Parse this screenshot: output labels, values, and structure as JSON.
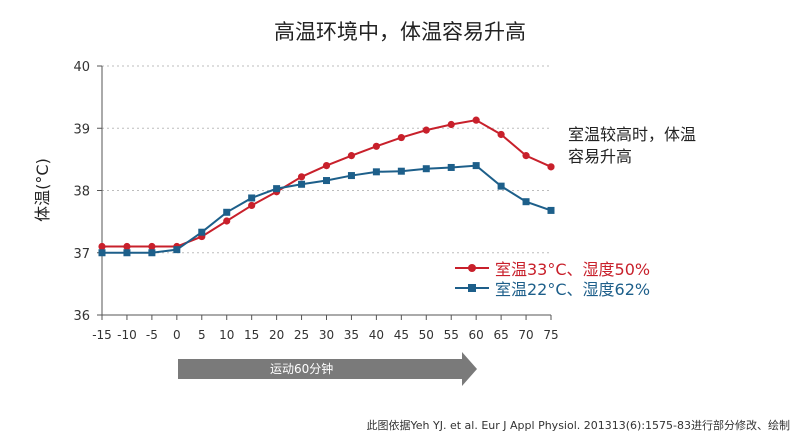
{
  "title": "高温环境中，体温容易升高",
  "annotation": [
    "室温较高时，体温",
    "容易升高"
  ],
  "arrow_label": "运动60分钟",
  "source": "此图依据Yeh YJ. et al. Eur J Appl Physiol. 201313(6):1575-83进行部分修改、绘制",
  "colors": {
    "series1": "#c8202b",
    "series2": "#1d5f8a",
    "arrow": "#7a7a7a",
    "grid": "#bdbdbd"
  },
  "chart_data": {
    "type": "line",
    "ylabel": "体温(°C)",
    "xlabel": "",
    "ylim": [
      36,
      40
    ],
    "xlim": [
      -15,
      75
    ],
    "yticks": [
      36,
      37,
      38,
      39,
      40
    ],
    "x": [
      -15,
      -10,
      -5,
      0,
      5,
      10,
      15,
      20,
      25,
      30,
      35,
      40,
      45,
      50,
      55,
      60,
      65,
      70,
      75
    ],
    "grid": "horizontal dotted",
    "legend_position": "right",
    "series": [
      {
        "name": "室温33°C、湿度50%",
        "marker": "circle",
        "values": [
          37.1,
          37.1,
          37.1,
          37.1,
          37.26,
          37.51,
          37.76,
          37.98,
          38.22,
          38.4,
          38.56,
          38.71,
          38.85,
          38.97,
          39.06,
          39.13,
          38.9,
          38.56,
          38.38
        ]
      },
      {
        "name": "室温22°C、湿度62%",
        "marker": "square",
        "values": [
          37.0,
          37.0,
          37.0,
          37.05,
          37.33,
          37.65,
          37.88,
          38.03,
          38.1,
          38.16,
          38.24,
          38.3,
          38.31,
          38.35,
          38.37,
          38.4,
          38.07,
          37.82,
          37.68
        ]
      }
    ]
  }
}
